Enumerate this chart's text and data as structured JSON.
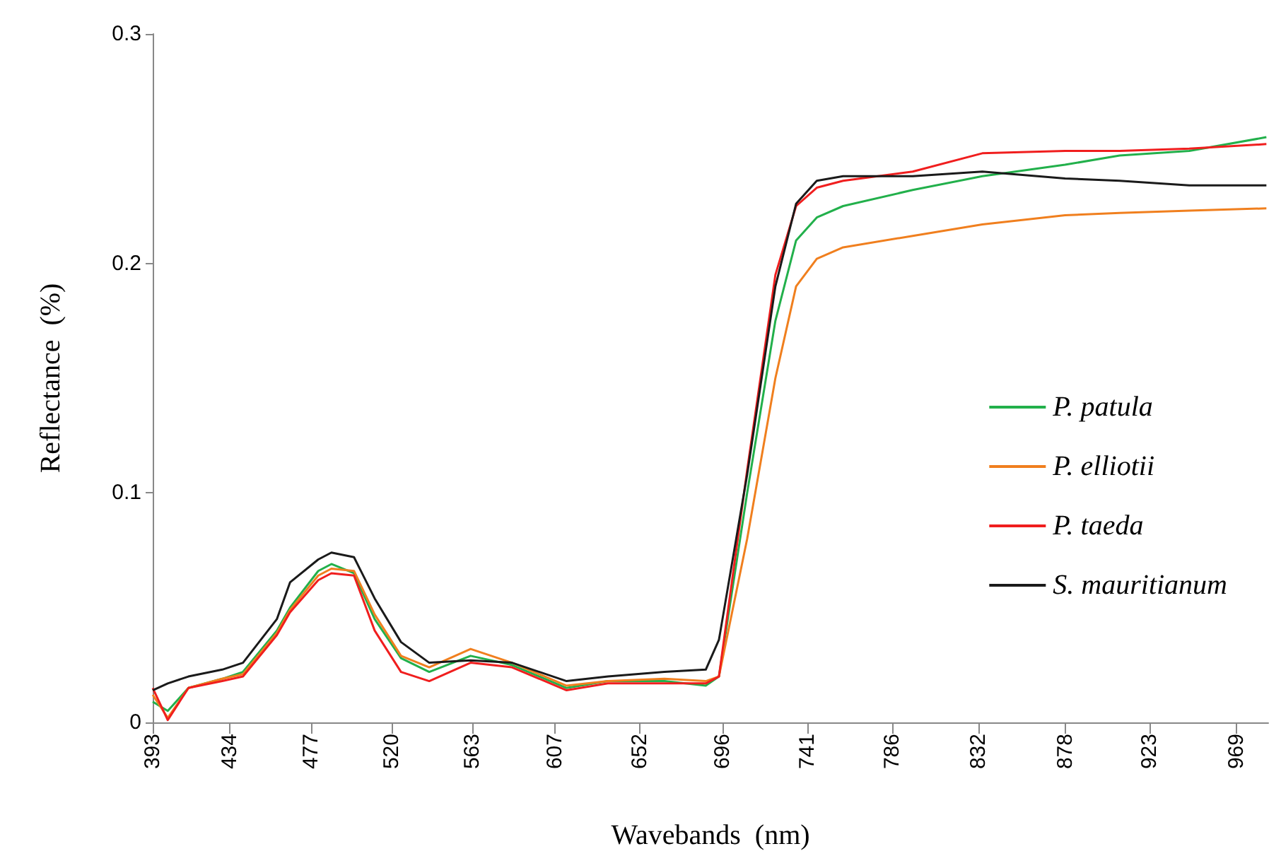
{
  "chart_data": {
    "type": "line",
    "xlabel": "Wavebands  (nm)",
    "ylabel": "Reflectance  (%)",
    "xlim": [
      393,
      986
    ],
    "xticks": [
      393,
      434,
      477,
      520,
      563,
      607,
      652,
      696,
      741,
      786,
      832,
      878,
      923,
      969
    ],
    "ylim": [
      0,
      0.3
    ],
    "yticks": [
      0,
      0.1,
      0.2,
      0.3
    ],
    "grid": false,
    "legend": "right",
    "marker": "none",
    "line_style": "solid",
    "x": [
      393,
      401,
      412,
      430,
      441,
      459,
      466,
      481,
      488,
      500,
      511,
      525,
      540,
      562,
      584,
      613,
      635,
      665,
      687,
      694,
      709,
      724,
      735,
      746,
      760,
      797,
      834,
      878,
      907,
      944,
      985
    ],
    "series": [
      {
        "name": "P. patula",
        "color": "#22b04b",
        "values": [
          0.009,
          0.005,
          0.015,
          0.019,
          0.022,
          0.04,
          0.05,
          0.066,
          0.069,
          0.065,
          0.045,
          0.028,
          0.022,
          0.029,
          0.025,
          0.015,
          0.018,
          0.018,
          0.016,
          0.02,
          0.1,
          0.175,
          0.21,
          0.22,
          0.225,
          0.232,
          0.238,
          0.243,
          0.247,
          0.249,
          0.255
        ]
      },
      {
        "name": "P. elliotii",
        "color": "#f07f1e",
        "values": [
          0.012,
          0.002,
          0.015,
          0.019,
          0.021,
          0.039,
          0.049,
          0.064,
          0.067,
          0.066,
          0.047,
          0.029,
          0.024,
          0.032,
          0.026,
          0.016,
          0.018,
          0.019,
          0.018,
          0.02,
          0.08,
          0.15,
          0.19,
          0.202,
          0.207,
          0.212,
          0.217,
          0.221,
          0.222,
          0.223,
          0.224
        ]
      },
      {
        "name": "P. taeda",
        "color": "#f01e1e",
        "values": [
          0.015,
          0.001,
          0.015,
          0.018,
          0.02,
          0.038,
          0.048,
          0.062,
          0.065,
          0.064,
          0.04,
          0.022,
          0.018,
          0.026,
          0.024,
          0.014,
          0.017,
          0.017,
          0.017,
          0.02,
          0.11,
          0.195,
          0.225,
          0.233,
          0.236,
          0.24,
          0.248,
          0.249,
          0.249,
          0.25,
          0.252
        ]
      },
      {
        "name": "S. mauritianum",
        "color": "#1a1a1a",
        "values": [
          0.014,
          0.017,
          0.02,
          0.023,
          0.026,
          0.045,
          0.061,
          0.071,
          0.074,
          0.072,
          0.054,
          0.035,
          0.026,
          0.027,
          0.026,
          0.018,
          0.02,
          0.022,
          0.023,
          0.036,
          0.108,
          0.19,
          0.226,
          0.236,
          0.238,
          0.238,
          0.24,
          0.237,
          0.236,
          0.234,
          0.234
        ]
      }
    ]
  }
}
